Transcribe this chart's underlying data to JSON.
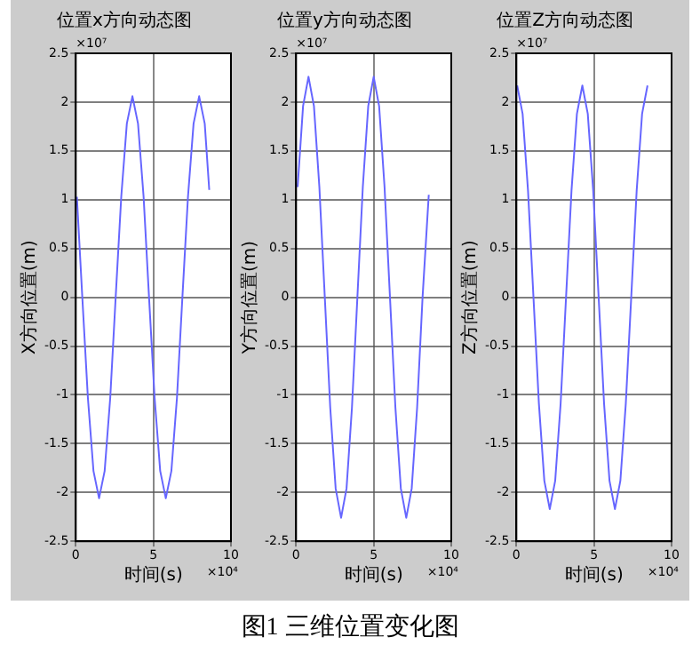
{
  "chart_data": [
    {
      "type": "line",
      "title": "位置x方向动态图",
      "xlabel": "时间(s)",
      "ylabel": "X方向位置(m)",
      "annotations": [
        "×10⁷",
        "×10⁴",
        "图1  三维位置变化图"
      ],
      "xlim": [
        0,
        10
      ],
      "xticks": [
        0,
        5,
        10
      ],
      "ylim": [
        -2.5,
        2.5
      ],
      "yticks": [
        -2.5,
        -2,
        -1.5,
        -1,
        -0.5,
        0,
        0.5,
        1,
        1.5,
        2,
        2.5
      ],
      "grid": true,
      "marker": "none",
      "line_style": "solid",
      "legend": false,
      "series": [
        {
          "color": "#6666ff",
          "x": [
            0.07,
            0.42,
            0.78,
            1.14,
            1.5,
            1.86,
            2.22,
            2.57,
            2.93,
            3.29,
            3.65,
            4.01,
            4.37,
            4.72,
            5.08,
            5.44,
            5.8,
            6.16,
            6.52,
            6.87,
            7.23,
            7.59,
            7.95,
            8.31,
            8.6
          ],
          "values": [
            1.03,
            0,
            -1.03,
            -1.78,
            -2.06,
            -1.78,
            -1.03,
            0,
            1.03,
            1.78,
            2.06,
            1.78,
            1.03,
            0,
            -1.03,
            -1.78,
            -2.06,
            -1.78,
            -1.03,
            0,
            1.03,
            1.78,
            2.06,
            1.78,
            1.1
          ]
        }
      ]
    },
    {
      "type": "line",
      "title": "位置y方向动态图",
      "xlabel": "时间(s)",
      "ylabel": "Y方向位置(m)",
      "annotations": [
        "×10⁷",
        "×10⁴"
      ],
      "xlim": [
        0,
        10
      ],
      "xticks": [
        0,
        5,
        10
      ],
      "ylim": [
        -2.5,
        2.5
      ],
      "yticks": [
        -2.5,
        -2,
        -1.5,
        -1,
        -0.5,
        0,
        0.5,
        1,
        1.5,
        2,
        2.5
      ],
      "grid": true,
      "marker": "none",
      "line_style": "solid",
      "legend": false,
      "series": [
        {
          "color": "#6666ff",
          "x": [
            0.1,
            0.45,
            0.8,
            1.15,
            1.5,
            1.85,
            2.2,
            2.55,
            2.9,
            3.25,
            3.6,
            3.95,
            4.3,
            4.65,
            5.0,
            5.35,
            5.7,
            6.05,
            6.4,
            6.75,
            7.1,
            7.45,
            7.8,
            8.15,
            8.55
          ],
          "values": [
            1.13,
            1.96,
            2.26,
            1.96,
            1.13,
            0,
            -1.13,
            -1.96,
            -2.26,
            -1.96,
            -1.13,
            0,
            1.13,
            1.96,
            2.26,
            1.96,
            1.13,
            0,
            -1.13,
            -1.96,
            -2.26,
            -1.96,
            -1.13,
            0,
            1.05
          ]
        }
      ]
    },
    {
      "type": "line",
      "title": "位置Z方向动态图",
      "xlabel": "时间(s)",
      "ylabel": "Z方向位置(m)",
      "annotations": [
        "×10⁷",
        "×10⁴"
      ],
      "xlim": [
        0,
        10
      ],
      "xticks": [
        0,
        5,
        10
      ],
      "ylim": [
        -2.5,
        2.5
      ],
      "yticks": [
        -2.5,
        -2,
        -1.5,
        -1,
        -0.5,
        0,
        0.5,
        1,
        1.5,
        2,
        2.5
      ],
      "grid": true,
      "marker": "none",
      "line_style": "solid",
      "legend": false,
      "series": [
        {
          "color": "#6666ff",
          "x": [
            0.05,
            0.4,
            0.75,
            1.1,
            1.45,
            1.8,
            2.15,
            2.5,
            2.85,
            3.2,
            3.55,
            3.9,
            4.25,
            4.6,
            4.95,
            5.3,
            5.65,
            6.0,
            6.35,
            6.7,
            7.05,
            7.4,
            7.75,
            8.1,
            8.45
          ],
          "values": [
            2.17,
            1.88,
            1.09,
            0,
            -1.09,
            -1.88,
            -2.17,
            -1.88,
            -1.09,
            0,
            1.09,
            1.88,
            2.17,
            1.88,
            1.09,
            0,
            -1.09,
            -1.88,
            -2.17,
            -1.88,
            -1.09,
            0,
            1.09,
            1.88,
            2.17
          ]
        }
      ]
    }
  ]
}
